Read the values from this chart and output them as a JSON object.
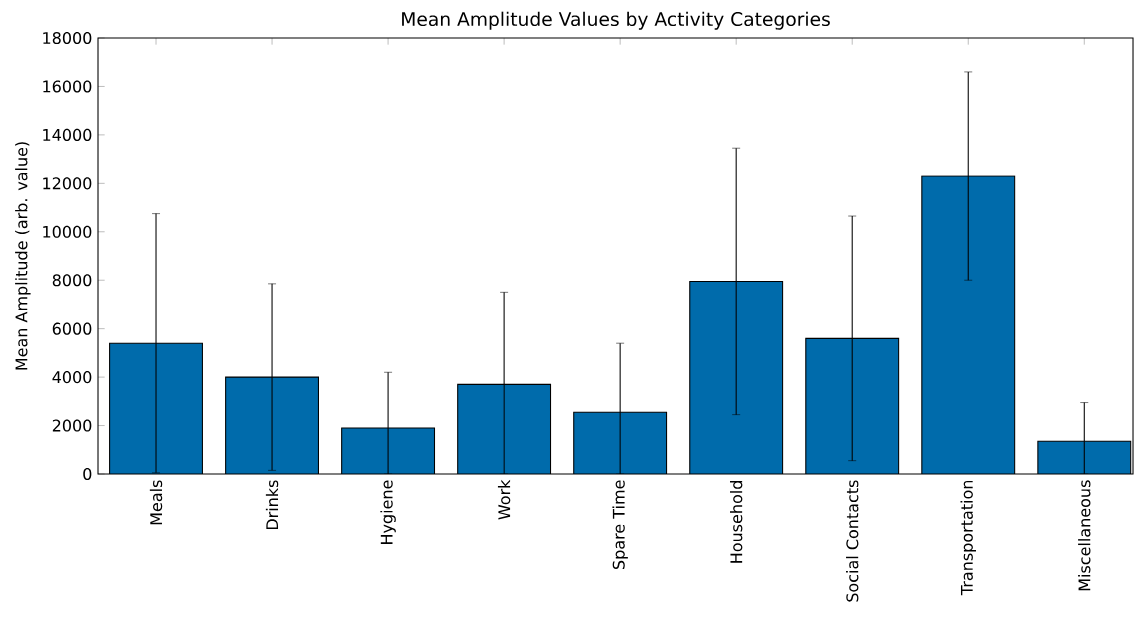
{
  "chart_data": {
    "type": "bar",
    "title": "Mean Amplitude Values by Activity Categories",
    "ylabel": "Mean Amplitude (arb. value)",
    "categories": [
      "Meals",
      "Drinks",
      "Hygiene",
      "Work",
      "Spare Time",
      "Household",
      "Social Contacts",
      "Transportation",
      "Miscellaneous"
    ],
    "values": [
      5400,
      4000,
      1900,
      3700,
      2550,
      7950,
      5600,
      12300,
      1350
    ],
    "errors": [
      5350,
      3850,
      [
        0,
        4200
      ],
      [
        0,
        7500
      ],
      [
        0,
        5400
      ],
      5500,
      5050,
      4300,
      [
        0,
        2950
      ]
    ],
    "color": "#006bab",
    "ylim": [
      0,
      18000
    ],
    "yticks": [
      0,
      2000,
      4000,
      6000,
      8000,
      10000,
      12000,
      14000,
      16000,
      18000
    ],
    "grid": false
  }
}
